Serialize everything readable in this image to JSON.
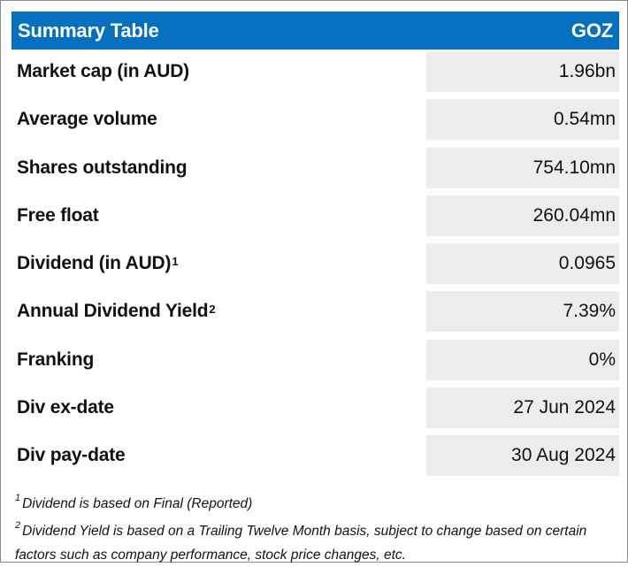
{
  "header": {
    "title": "Summary Table",
    "ticker": "GOZ"
  },
  "rows": [
    {
      "label": "Market cap (in AUD)",
      "sup": "",
      "value": "1.96bn"
    },
    {
      "label": "Average volume",
      "sup": "",
      "value": "0.54mn"
    },
    {
      "label": "Shares outstanding",
      "sup": "",
      "value": "754.10mn"
    },
    {
      "label": "Free float",
      "sup": "",
      "value": "260.04mn"
    },
    {
      "label": "Dividend (in AUD)",
      "sup": "1",
      "value": "0.0965"
    },
    {
      "label": "Annual Dividend Yield",
      "sup": "2",
      "value": "7.39%"
    },
    {
      "label": "Franking",
      "sup": "",
      "value": "0%"
    },
    {
      "label": "Div ex-date",
      "sup": "",
      "value": "27 Jun 2024"
    },
    {
      "label": "Div pay-date",
      "sup": "",
      "value": "30 Aug 2024"
    }
  ],
  "footnotes": [
    {
      "mark": "1",
      "text": "Dividend is based on Final (Reported)"
    },
    {
      "mark": "2",
      "text": "Dividend Yield is based on a Trailing Twelve Month basis, subject to change based on certain factors such as company performance, stock price changes, etc."
    }
  ]
}
